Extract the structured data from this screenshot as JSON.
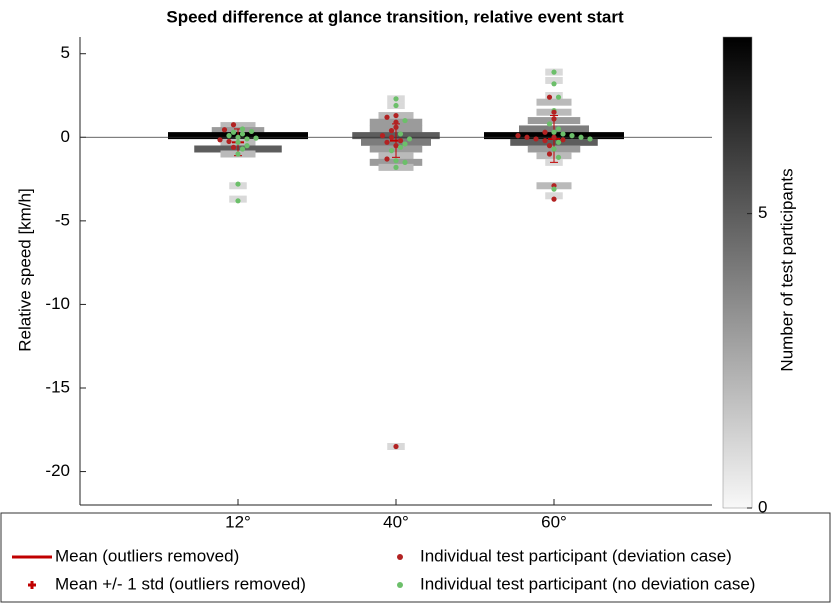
{
  "chart_data": {
    "type": "strip",
    "title": "Speed difference at glance transition, relative event start",
    "ylabel": "Relative speed [km/h]",
    "categories": [
      "12°",
      "40°",
      "60°"
    ],
    "ylim": [
      -22,
      6
    ],
    "yticks": [
      -20,
      -15,
      -10,
      -5,
      0,
      5
    ],
    "zero_line": true,
    "groups": [
      {
        "bins": [
          0.7,
          0.4,
          0.1,
          -0.3,
          -0.7,
          -1.0,
          -2.9,
          -3.7
        ],
        "counts": [
          2,
          3,
          8,
          2,
          5,
          2,
          1,
          1
        ],
        "mean": -0.3,
        "std": 0.8,
        "deviation": [
          0.75,
          0.45,
          -0.15,
          -0.6,
          -0.25
        ],
        "no_deviation": [
          0.5,
          0.3,
          0.1,
          0.0,
          -0.1,
          -0.3,
          -0.5,
          -0.7,
          -1.0,
          -2.8,
          -3.8,
          0.2,
          0.35,
          -0.05
        ]
      },
      {
        "bins": [
          2.3,
          1.9,
          1.3,
          0.9,
          0.5,
          0.1,
          -0.3,
          -0.7,
          -1.1,
          -1.5,
          -1.8,
          -18.5
        ],
        "counts": [
          1,
          1,
          2,
          3,
          3,
          5,
          4,
          3,
          2,
          3,
          2,
          1
        ],
        "mean": -0.2,
        "std": 1.0,
        "deviation": [
          1.3,
          1.2,
          0.9,
          0.6,
          0.1,
          0.0,
          -0.2,
          -0.3,
          -0.5,
          -1.3,
          -18.5,
          0.4
        ],
        "no_deviation": [
          2.3,
          1.9,
          1.0,
          0.2,
          -0.1,
          -0.4,
          -0.8,
          -1.4,
          -1.5,
          -1.8,
          -0.6
        ]
      },
      {
        "bins": [
          3.9,
          3.4,
          2.5,
          2.1,
          1.5,
          1.0,
          0.5,
          0.1,
          -0.3,
          -0.7,
          -1.1,
          -1.5,
          -2.9,
          -3.5
        ],
        "counts": [
          1,
          1,
          1,
          2,
          2,
          3,
          4,
          8,
          5,
          3,
          2,
          1,
          2,
          1
        ],
        "mean": -0.1,
        "std": 1.4,
        "deviation": [
          2.4,
          1.5,
          1.1,
          0.3,
          0.1,
          0.0,
          -0.1,
          -0.2,
          -0.5,
          -1.0,
          -2.9,
          -3.7,
          0.0,
          -0.15
        ],
        "no_deviation": [
          3.9,
          3.2,
          2.4,
          1.6,
          0.8,
          0.5,
          0.3,
          0.1,
          0.0,
          -0.1,
          -0.3,
          -0.7,
          -1.2,
          -3.1,
          0.2
        ]
      }
    ],
    "colorbar": {
      "label": "Number of test participants",
      "lim": [
        0,
        8
      ],
      "ticks": [
        0,
        5
      ]
    },
    "legend": [
      {
        "name": "Mean (outliers removed)",
        "marker": "line",
        "color": "#c00000"
      },
      {
        "name": "Mean +/- 1 std  (outliers removed)",
        "marker": "plus",
        "color": "#c00000"
      },
      {
        "name": "Individual test participant (deviation case)",
        "marker": "dot",
        "color": "#b22222"
      },
      {
        "name": "Individual test participant (no deviation case)",
        "marker": "dot",
        "color": "#6cbf6a"
      }
    ]
  }
}
